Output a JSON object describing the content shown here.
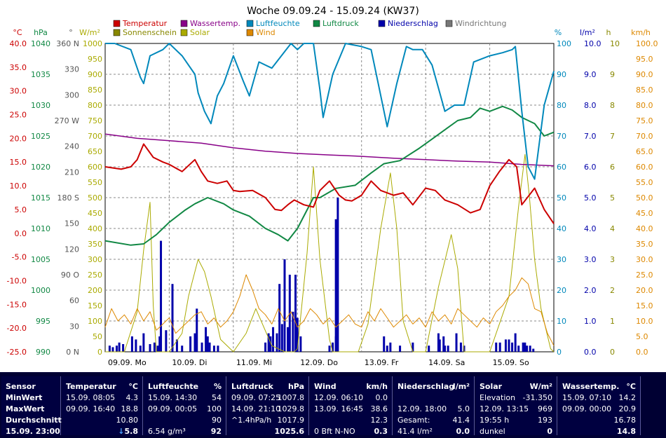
{
  "chart_data": {
    "type": "line",
    "title": "Woche 09.09.24 - 15.09.24 (KW37)",
    "legend": [
      {
        "label": "Temperatur",
        "color": "#cc0000"
      },
      {
        "label": "Wassertemp.",
        "color": "#880088"
      },
      {
        "label": "Luftfeuchte",
        "color": "#0088bb"
      },
      {
        "label": "Luftdruck",
        "color": "#118844"
      },
      {
        "label": "Niederschlag",
        "color": "#0000aa"
      },
      {
        "label": "Windrichtung",
        "color": "#777777"
      },
      {
        "label": "Sonnenschein",
        "color": "#888800"
      },
      {
        "label": "Solar",
        "color": "#aaaa00"
      },
      {
        "label": "Wind",
        "color": "#dd8800"
      }
    ],
    "axis_units": {
      "temp": "°C",
      "pressure": "hPa",
      "direction": "°",
      "solar": "W/m²",
      "humidity": "%",
      "rain": "l/m²",
      "sun": "h",
      "wind": "km/h"
    },
    "left_axes": [
      {
        "color": "#cc0000",
        "ticks": [
          "40.0",
          "35.0",
          "30.0",
          "25.0",
          "20.0",
          "15.0",
          "10.0",
          "5.0",
          "0.0",
          "-5.0",
          "-10.0",
          "-15.0",
          "-20.0",
          "-25.0"
        ]
      },
      {
        "color": "#118844",
        "ticks": [
          "1040",
          "1035",
          "1030",
          "1025",
          "1020",
          "1015",
          "1010",
          "1005",
          "1000",
          "995",
          "990"
        ]
      },
      {
        "color": "#555555",
        "ticks": [
          "360 N",
          "330",
          "300",
          "270 W",
          "240",
          "210",
          "180 S",
          "150",
          "120",
          "90 O",
          "60",
          "30",
          "0 N"
        ]
      },
      {
        "color": "#aaaa00",
        "ticks": [
          "1000",
          "950",
          "900",
          "850",
          "800",
          "750",
          "700",
          "650",
          "600",
          "550",
          "500",
          "450",
          "400",
          "350",
          "300",
          "250",
          "200",
          "150",
          "100",
          "50",
          "0"
        ]
      }
    ],
    "right_axes": [
      {
        "color": "#0088bb",
        "ticks": [
          "100",
          "90",
          "80",
          "70",
          "60",
          "50",
          "40",
          "30",
          "20",
          "10",
          "0"
        ]
      },
      {
        "color": "#0000aa",
        "ticks": [
          "10.0",
          "9.0",
          "8.0",
          "7.0",
          "6.0",
          "5.0",
          "4.0",
          "3.0",
          "2.0",
          "1.0",
          "0.0"
        ]
      },
      {
        "color": "#888800",
        "ticks": [
          "10",
          "9",
          "8",
          "7",
          "6",
          "5",
          "4",
          "3",
          "2",
          "1",
          "0"
        ]
      },
      {
        "color": "#dd8800",
        "ticks": [
          "100.0",
          "95.0",
          "90.0",
          "85.0",
          "80.0",
          "75.0",
          "70.0",
          "65.0",
          "60.0",
          "55.0",
          "50.0",
          "45.0",
          "40.0",
          "35.0",
          "30.0",
          "25.0",
          "20.0",
          "15.0",
          "10.0",
          "5.0",
          "0.0"
        ]
      }
    ],
    "x_labels": [
      "09.09.  Mo",
      "10.09.  Di",
      "11.09.  Mi",
      "12.09.  Do",
      "13.09.  Fr",
      "14.09.  Sa",
      "15.09.  So"
    ],
    "x_range_days": [
      0,
      7
    ],
    "series": [
      {
        "name": "Temperatur",
        "axis": "temp",
        "range": [
          -25,
          40
        ],
        "color": "#cc0000",
        "width": 2,
        "x": [
          0,
          0.25,
          0.4,
          0.5,
          0.6,
          0.75,
          0.9,
          1.0,
          1.2,
          1.4,
          1.5,
          1.6,
          1.75,
          1.9,
          2.0,
          2.1,
          2.3,
          2.5,
          2.65,
          2.75,
          2.85,
          2.95,
          3.1,
          3.25,
          3.35,
          3.5,
          3.65,
          3.75,
          3.85,
          4.0,
          4.15,
          4.3,
          4.5,
          4.65,
          4.8,
          5.0,
          5.15,
          5.3,
          5.5,
          5.7,
          5.85,
          6.0,
          6.15,
          6.3,
          6.42,
          6.5,
          6.7,
          6.85,
          7.0
        ],
        "y": [
          14.0,
          13.5,
          14.0,
          15.5,
          18.8,
          16.0,
          15.0,
          14.5,
          13.0,
          15.5,
          13.0,
          11.0,
          10.5,
          11.0,
          9.0,
          8.8,
          9.0,
          7.5,
          5.0,
          4.8,
          6.0,
          7.0,
          6.0,
          5.5,
          9.0,
          11.0,
          8.0,
          7.0,
          6.8,
          8.0,
          11.0,
          9.0,
          8.0,
          8.5,
          6.0,
          9.5,
          9.0,
          7.0,
          6.0,
          4.3,
          5.0,
          10.0,
          13.0,
          15.5,
          14.0,
          6.0,
          9.5,
          5.0,
          2.0
        ]
      },
      {
        "name": "Wassertemp.",
        "axis": "temp",
        "range": [
          -25,
          40
        ],
        "color": "#880088",
        "width": 1.5,
        "x": [
          0,
          0.5,
          1,
          1.5,
          2,
          2.5,
          3,
          3.5,
          4,
          4.5,
          5,
          5.5,
          6,
          6.5,
          7
        ],
        "y": [
          20.9,
          20.0,
          19.5,
          19.0,
          18.0,
          17.3,
          16.8,
          16.5,
          16.2,
          15.8,
          15.5,
          15.2,
          15.0,
          14.5,
          14.2
        ]
      },
      {
        "name": "Luftfeuchte",
        "axis": "humidity",
        "range": [
          0,
          100
        ],
        "color": "#0088bb",
        "width": 2,
        "x": [
          0,
          0.15,
          0.4,
          0.55,
          0.6,
          0.7,
          0.9,
          1.0,
          1.2,
          1.4,
          1.45,
          1.55,
          1.65,
          1.75,
          1.85,
          2.0,
          2.15,
          2.25,
          2.4,
          2.6,
          2.75,
          2.9,
          3.0,
          3.1,
          3.25,
          3.35,
          3.4,
          3.55,
          3.75,
          4.0,
          4.15,
          4.25,
          4.4,
          4.55,
          4.7,
          4.8,
          4.95,
          5.1,
          5.3,
          5.45,
          5.6,
          5.75,
          6.0,
          6.2,
          6.35,
          6.4,
          6.5,
          6.6,
          6.7,
          6.85,
          7.0
        ],
        "y": [
          100,
          100,
          98,
          89,
          87,
          96,
          98,
          100,
          96,
          90,
          84,
          78,
          74,
          83,
          87,
          96,
          88,
          83,
          94,
          92,
          96,
          100,
          98,
          100,
          100,
          85,
          76,
          90,
          100,
          99,
          98,
          88,
          73,
          87,
          99,
          98,
          98,
          93,
          78,
          80,
          80,
          94,
          96,
          97,
          98,
          99,
          78,
          60,
          56,
          80,
          91
        ]
      },
      {
        "name": "Luftdruck",
        "axis": "pressure",
        "range": [
          990,
          1040
        ],
        "color": "#118844",
        "width": 2,
        "x": [
          0,
          0.4,
          0.6,
          0.8,
          0.9,
          1.0,
          1.25,
          1.4,
          1.6,
          1.85,
          2.0,
          2.25,
          2.5,
          2.7,
          2.85,
          3.0,
          3.25,
          3.35,
          3.6,
          3.9,
          4.15,
          4.35,
          4.6,
          4.9,
          5.1,
          5.3,
          5.5,
          5.7,
          5.85,
          6.0,
          6.2,
          6.35,
          6.5,
          6.7,
          6.85,
          7.0
        ],
        "y": [
          1008,
          1007.3,
          1007.5,
          1009,
          1010,
          1011,
          1013,
          1014,
          1015,
          1014,
          1013,
          1012,
          1010,
          1009,
          1008,
          1010,
          1015,
          1015,
          1016.5,
          1017,
          1019,
          1020.5,
          1021,
          1023,
          1024.5,
          1026,
          1027.5,
          1028,
          1029.5,
          1029,
          1029.8,
          1029.2,
          1028,
          1027,
          1025,
          1025.6
        ]
      },
      {
        "name": "Solar",
        "axis": "solar",
        "range": [
          0,
          1000
        ],
        "color": "#aaaa00",
        "width": 1,
        "x": [
          0,
          0.3,
          0.5,
          0.6,
          0.7,
          0.75,
          0.8,
          0.95,
          1.0,
          1.2,
          1.3,
          1.45,
          1.55,
          1.65,
          1.8,
          2.0,
          2.2,
          2.35,
          2.6,
          2.8,
          2.95,
          3.0,
          3.15,
          3.25,
          3.35,
          3.5,
          3.55,
          3.75,
          3.95,
          4.1,
          4.3,
          4.45,
          4.55,
          4.65,
          4.8,
          5.0,
          5.2,
          5.4,
          5.5,
          5.6,
          5.8,
          6.0,
          6.3,
          6.45,
          6.55,
          6.62,
          6.7,
          6.8,
          6.95,
          7.0
        ],
        "y": [
          0,
          0,
          130,
          330,
          485,
          150,
          0,
          0,
          0,
          60,
          180,
          300,
          260,
          180,
          40,
          0,
          60,
          140,
          20,
          0,
          0,
          10,
          320,
          600,
          300,
          40,
          0,
          0,
          0,
          90,
          400,
          580,
          400,
          100,
          0,
          0,
          210,
          380,
          270,
          0,
          0,
          0,
          180,
          470,
          640,
          500,
          300,
          140,
          10,
          0
        ]
      },
      {
        "name": "Wind",
        "axis": "wind",
        "range": [
          0,
          100
        ],
        "color": "#dd8800",
        "width": 1,
        "x": [
          0,
          0.1,
          0.2,
          0.3,
          0.4,
          0.5,
          0.6,
          0.7,
          0.8,
          0.9,
          1.0,
          1.1,
          1.2,
          1.3,
          1.4,
          1.5,
          1.6,
          1.7,
          1.8,
          1.9,
          2.0,
          2.1,
          2.2,
          2.3,
          2.4,
          2.5,
          2.6,
          2.7,
          2.8,
          2.9,
          3.0,
          3.1,
          3.2,
          3.3,
          3.4,
          3.5,
          3.6,
          3.7,
          3.8,
          3.9,
          4.0,
          4.1,
          4.2,
          4.3,
          4.4,
          4.5,
          4.6,
          4.7,
          4.8,
          4.9,
          5.0,
          5.1,
          5.2,
          5.3,
          5.4,
          5.5,
          5.6,
          5.7,
          5.8,
          5.9,
          6.0,
          6.1,
          6.2,
          6.3,
          6.4,
          6.5,
          6.6,
          6.7,
          6.8,
          6.9,
          7.0
        ],
        "y": [
          8,
          14,
          10,
          12,
          9,
          14,
          10,
          13,
          7,
          9,
          11,
          6,
          8,
          10,
          12,
          13,
          9,
          11,
          8,
          10,
          13,
          18,
          25,
          20,
          14,
          12,
          9,
          14,
          10,
          13,
          8,
          10,
          14,
          12,
          9,
          11,
          8,
          10,
          12,
          9,
          8,
          13,
          10,
          14,
          11,
          8,
          10,
          12,
          9,
          11,
          8,
          13,
          10,
          12,
          9,
          14,
          12,
          10,
          8,
          11,
          9,
          13,
          15,
          18,
          20,
          24,
          22,
          14,
          13,
          6,
          2
        ]
      }
    ],
    "rain": {
      "name": "Niederschlag",
      "axis": "rain",
      "range": [
        0,
        10
      ],
      "color": "#0000aa",
      "x": [
        0.07,
        0.12,
        0.18,
        0.22,
        0.28,
        0.42,
        0.48,
        0.55,
        0.6,
        0.7,
        0.77,
        0.82,
        0.85,
        0.87,
        0.95,
        1.05,
        1.12,
        1.2,
        1.33,
        1.4,
        1.43,
        1.51,
        1.57,
        1.6,
        1.63,
        1.7,
        1.76,
        2.5,
        2.55,
        2.58,
        2.62,
        2.68,
        2.72,
        2.76,
        2.8,
        2.85,
        2.88,
        2.93,
        2.97,
        3.0,
        3.05,
        3.5,
        3.55,
        3.6,
        3.6,
        3.63,
        4.35,
        4.4,
        4.45,
        4.6,
        4.8,
        5.05,
        5.2,
        5.22,
        5.28,
        5.3,
        5.35,
        5.48,
        5.55,
        5.6,
        6.1,
        6.16,
        6.25,
        6.3,
        6.35,
        6.4,
        6.45,
        6.52,
        6.55,
        6.58,
        6.63,
        6.68
      ],
      "y": [
        0.2,
        0.15,
        0.2,
        0.3,
        0.25,
        0.5,
        0.4,
        0.2,
        0.6,
        0.25,
        0.3,
        0.2,
        0.5,
        3.6,
        0.7,
        2.2,
        0.4,
        0.2,
        0.5,
        0.6,
        1.4,
        0.3,
        0.8,
        0.5,
        0.3,
        0.2,
        0.2,
        0.3,
        0.6,
        0.5,
        0.8,
        0.6,
        2.2,
        0.9,
        3.0,
        0.8,
        2.5,
        1.3,
        2.5,
        1.1,
        0.5,
        0.2,
        0.3,
        0.5,
        4.3,
        5.0,
        0.5,
        0.2,
        0.3,
        0.2,
        0.3,
        0.2,
        0.6,
        0.4,
        0.5,
        0.2,
        0.2,
        0.6,
        0.3,
        0.2,
        0.3,
        0.3,
        0.4,
        0.4,
        0.3,
        0.6,
        0.2,
        0.3,
        0.3,
        0.2,
        0.2,
        0.1
      ]
    }
  },
  "summary": {
    "sensor": {
      "title": "Sensor",
      "r1": "MinWert",
      "r2": "MaxWert",
      "r3": "Durchschnitt",
      "r4": "15.09.  23:00"
    },
    "temperature": {
      "title": "Temperatur",
      "unit": "°C",
      "min_time": "15.09.  08:05",
      "min_val": "4.3",
      "max_time": "09.09.  16:40",
      "max_val": "18.8",
      "avg": "10.80",
      "current": "5.8"
    },
    "humidity": {
      "title": "Luftfeuchte",
      "unit": "%",
      "min_time": "15.09.  14:30",
      "min_val": "54",
      "max_time": "09.09.  00:05",
      "max_val": "100",
      "avg": "90",
      "abs": "6.54 g/m³",
      "current": "92"
    },
    "pressure": {
      "title": "Luftdruck",
      "unit": "hPa",
      "min_time": "09.09.  07:25",
      "min_val": "1007.8",
      "max_time": "14.09.  21:10",
      "max_val": "1029.8",
      "trend": "^1.4hPa/h",
      "avg": "1017.9",
      "current": "1025.6"
    },
    "wind": {
      "title": "Wind",
      "unit": "km/h",
      "min_time": "12.09.  06:10",
      "min_val": "0.0",
      "max_time": "13.09.  16:45",
      "max_val": "38.6",
      "avg": "12.3",
      "dir": "0 Bft N-NO",
      "current": "0.3"
    },
    "rain": {
      "title": "Niederschlag",
      "unit": "l/m²",
      "max_time": "12.09.  18:00",
      "max_val": "5.0",
      "total_label": "Gesamt:",
      "total_val": "41.4",
      "total2": "41.4 l/m²",
      "current": "0.0"
    },
    "solar": {
      "title": "Solar",
      "unit": "W/m²",
      "elev_label": "Elevation",
      "elev_val": "-31.350",
      "max_time": "12.09.  13:15",
      "max_val": "969",
      "sun_hours": "19:55 h",
      "sun_val": "193",
      "state": "dunkel",
      "current": "0"
    },
    "water": {
      "title": "Wassertemp.",
      "unit": "°C",
      "min_time": "15.09.  07:10",
      "min_val": "14.2",
      "max_time": "09.09.  00:00",
      "max_val": "20.9",
      "avg": "16.78",
      "current": "14.8"
    }
  }
}
